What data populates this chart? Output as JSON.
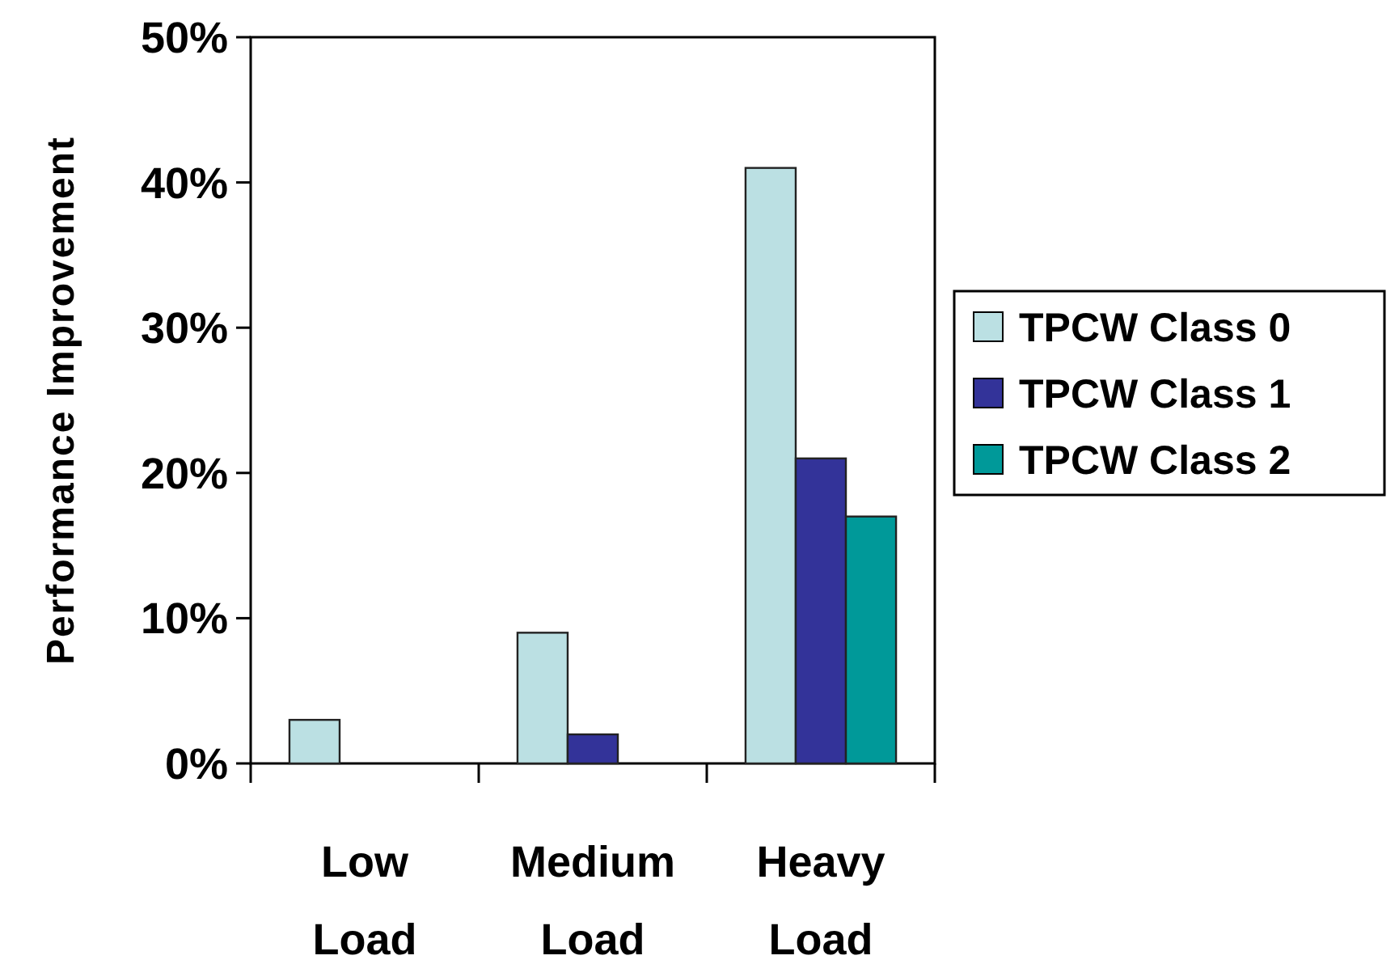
{
  "chart_data": {
    "type": "bar",
    "ylabel": "Performance Improvement",
    "categories": [
      "Low Load",
      "Medium Load",
      "Heavy Load"
    ],
    "series": [
      {
        "name": "TPCW Class 0",
        "color": "#bbe0e3",
        "values": [
          3,
          9,
          41
        ]
      },
      {
        "name": "TPCW Class 1",
        "color": "#333399",
        "values": [
          0,
          2,
          21
        ]
      },
      {
        "name": "TPCW Class 2",
        "color": "#009999",
        "values": [
          0,
          0,
          17
        ]
      }
    ],
    "ylim": [
      0,
      50
    ],
    "yticks": [
      {
        "value": 0,
        "label": "0%"
      },
      {
        "value": 10,
        "label": "10%"
      },
      {
        "value": 20,
        "label": "20%"
      },
      {
        "value": 30,
        "label": "30%"
      },
      {
        "value": 40,
        "label": "40%"
      },
      {
        "value": 50,
        "label": "50%"
      }
    ],
    "grid": false,
    "legend": "right"
  }
}
